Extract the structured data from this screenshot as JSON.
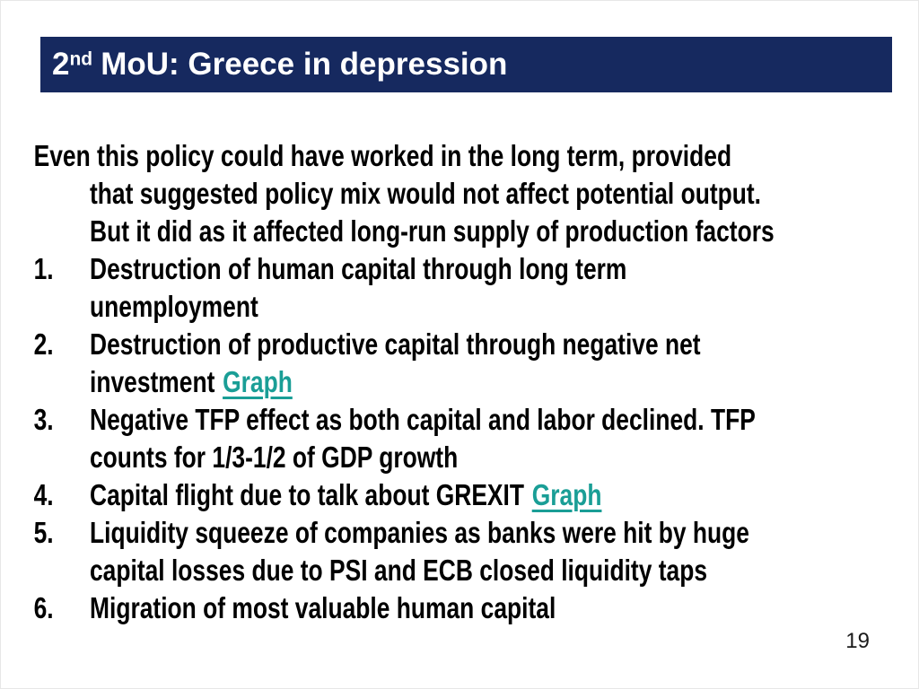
{
  "colors": {
    "title_bar_bg": "#16295f",
    "title_text": "#ffffff",
    "body_text": "#000000",
    "link": "#1a9e96",
    "background": "#ffffff"
  },
  "title": {
    "number": "2",
    "ordinal": "nd",
    "rest": "MoU: Greece in depression"
  },
  "intro": {
    "lines": [
      "Even this policy could have worked in the long term, provided",
      "that suggested policy mix would not affect potential output.",
      "But it did as it affected long-run supply of production factors"
    ]
  },
  "list": {
    "items": [
      {
        "number": "1.",
        "line1": "Destruction of human capital through long term",
        "line2": "unemployment"
      },
      {
        "number": "2.",
        "line1": "Destruction of productive capital through negative net",
        "line2": "investment",
        "line2_link": "Graph"
      },
      {
        "number": "3.",
        "line1": "Negative TFP effect as both capital and labor declined. TFP",
        "line2": "counts for 1/3-1/2 of GDP growth"
      },
      {
        "number": "4.",
        "line1": "Capital flight due to talk about GREXIT",
        "line1_link": "Graph"
      },
      {
        "number": "5.",
        "line1": "Liquidity squeeze of companies as banks were hit by huge",
        "line2": "capital losses due to PSI and ECB closed liquidity taps"
      },
      {
        "number": "6.",
        "line1": "Migration of most valuable human capital"
      }
    ]
  },
  "page_number": "19"
}
